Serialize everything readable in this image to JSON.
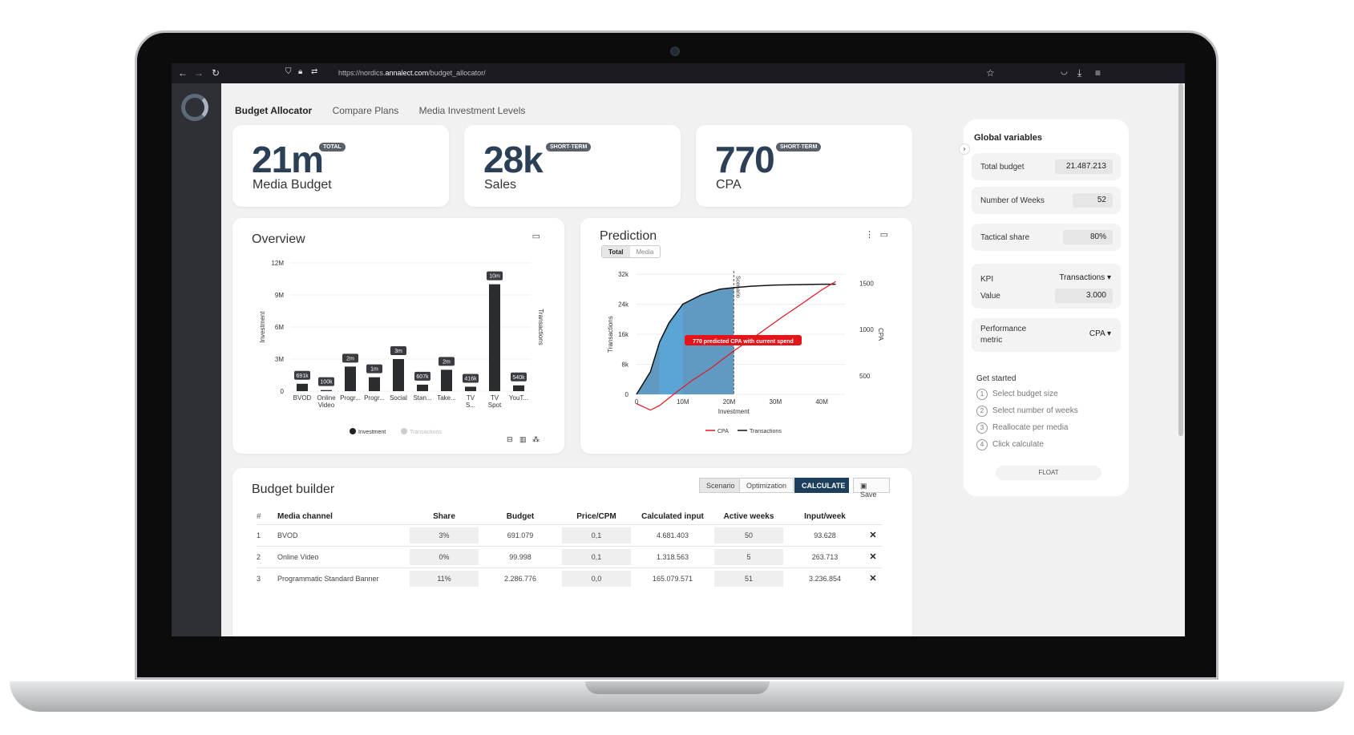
{
  "browser": {
    "url_prefix": "https://nordics.",
    "url_domain": "annalect.com",
    "url_path": "/budget_allocator/"
  },
  "tabs": [
    "Budget Allocator",
    "Compare Plans",
    "Media Investment Levels"
  ],
  "kpis": [
    {
      "value": "21m",
      "badge": "TOTAL",
      "label": "Media Budget"
    },
    {
      "value": "28k",
      "badge": "SHORT-TERM",
      "label": "Sales"
    },
    {
      "value": "770",
      "badge": "SHORT-TERM",
      "label": "CPA"
    }
  ],
  "overview": {
    "title": "Overview",
    "legend_investment": "Investment",
    "legend_transactions": "Transactions",
    "chart_data": {
      "type": "bar",
      "categories": [
        "BVOD",
        "Online Video",
        "Progr...",
        "Progr...",
        "Social",
        "Stan...",
        "Take...",
        "TV S...",
        "TV Spot",
        "YouT..."
      ],
      "series": [
        {
          "name": "Investment",
          "values": [
            0.691,
            0.1,
            2.3,
            1.3,
            3.0,
            0.607,
            2.0,
            0.416,
            10.0,
            0.54
          ]
        }
      ],
      "data_labels": [
        "691k",
        "100k",
        "2m",
        "1m",
        "3m",
        "607k",
        "2m",
        "416k",
        "10m",
        "540k"
      ],
      "y_ticks": [
        "0",
        "3M",
        "6M",
        "9M",
        "12M"
      ],
      "ylim": [
        0,
        12
      ],
      "ylabel": "Investment",
      "y2label": "Transactions"
    }
  },
  "prediction": {
    "title": "Prediction",
    "toggle_total": "Total",
    "toggle_media": "Media",
    "annotation": "770 predicted CPA with current spend",
    "scenario_label": "Scenario",
    "legend_cpa": "CPA",
    "legend_transactions": "Transactions",
    "chart_data": {
      "type": "line",
      "x_ticks": [
        "0",
        "10M",
        "20M",
        "30M",
        "40M"
      ],
      "y_ticks": [
        "0",
        "8k",
        "16k",
        "24k",
        "32k"
      ],
      "y2_ticks": [
        "500",
        "1000",
        "1500"
      ],
      "xlabel": "Investment",
      "ylabel": "Transactions",
      "y2label": "CPA",
      "xlim": [
        0,
        45
      ],
      "ylim": [
        0,
        32
      ],
      "series": [
        {
          "name": "Transactions",
          "x": [
            0,
            3,
            5,
            7,
            10,
            14,
            18,
            21,
            25,
            30,
            35,
            40,
            43
          ],
          "y": [
            0,
            6,
            14,
            19,
            24,
            26.5,
            28,
            28.4,
            28.8,
            29.1,
            29.2,
            29.3,
            29.3
          ]
        },
        {
          "name": "CPA",
          "x": [
            0,
            3,
            5,
            8,
            12,
            16,
            21,
            26,
            31,
            36,
            40,
            43
          ],
          "y": [
            200,
            130,
            180,
            300,
            450,
            580,
            770,
            940,
            1120,
            1290,
            1430,
            1520
          ]
        }
      ],
      "scenario_x": 21
    }
  },
  "global": {
    "title": "Global variables",
    "total_budget_label": "Total budget",
    "total_budget": "21.487.213",
    "weeks_label": "Number of Weeks",
    "weeks": "52",
    "tactical_label": "Tactical share",
    "tactical": "80%",
    "kpi_label": "KPI",
    "kpi_value": "Transactions ▾",
    "value_label": "Value",
    "value": "3.000",
    "perf_label_1": "Performance",
    "perf_label_2": "metric",
    "perf_value": "CPA ▾",
    "get_started": "Get started",
    "steps": [
      "Select budget size",
      "Select number of weeks",
      "Reallocate per media",
      "Click calculate"
    ],
    "float_btn": "FLOAT"
  },
  "builder": {
    "title": "Budget builder",
    "btn_scenario": "Scenario",
    "btn_optimization": "Optimization",
    "btn_calculate": "CALCULATE",
    "btn_save": "Save",
    "headers": [
      "#",
      "Media channel",
      "Share",
      "Budget",
      "Price/CPM",
      "Calculated input",
      "Active weeks",
      "Input/week"
    ],
    "rows": [
      [
        "1",
        "BVOD",
        "3%",
        "691.079",
        "0,1",
        "4.681.403",
        "50",
        "93.628"
      ],
      [
        "2",
        "Online Video",
        "0%",
        "99.998",
        "0,1",
        "1.318.563",
        "5",
        "263.713"
      ],
      [
        "3",
        "Programmatic Standard Banner",
        "11%",
        "2.286.776",
        "0,0",
        "165.079.571",
        "51",
        "3.236.854"
      ]
    ]
  },
  "colors": {
    "accent": "#1c3f5e",
    "kpi_text": "#2b3f57",
    "red": "#e4141b",
    "blue": "#5aa5d6"
  }
}
